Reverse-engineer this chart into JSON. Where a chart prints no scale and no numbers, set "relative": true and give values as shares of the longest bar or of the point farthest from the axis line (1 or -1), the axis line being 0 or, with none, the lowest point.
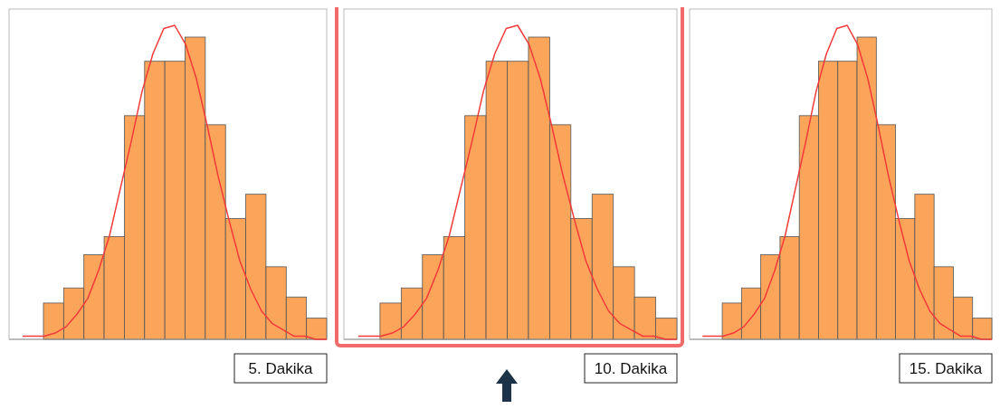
{
  "chart_data": [
    {
      "type": "bar",
      "title": "5. Dakika",
      "relative": true,
      "color": "#fba55a",
      "categories": [
        null,
        null,
        null,
        null,
        null,
        null,
        null,
        null,
        null,
        null,
        null,
        null,
        null,
        null
      ],
      "values": [
        0.12,
        0.17,
        0.28,
        0.34,
        0.74,
        0.92,
        0.92,
        1,
        0.71,
        0.4,
        0.48,
        0.24,
        0.14,
        0.07
      ]
    },
    {
      "type": "line",
      "relative": true,
      "color": "#f23a3a",
      "categories": [
        null,
        null,
        null,
        null,
        null,
        null,
        null,
        null,
        null,
        null,
        null,
        null,
        null,
        null,
        null,
        null,
        null,
        null,
        null,
        null,
        null,
        null,
        null,
        null,
        null,
        null,
        null,
        null,
        null
      ],
      "values": [
        0.01,
        0.01,
        0.01,
        0.02,
        0.04,
        0.08,
        0.13,
        0.22,
        0.33,
        0.48,
        0.63,
        0.79,
        0.91,
        0.99,
        1,
        0.94,
        0.83,
        0.68,
        0.52,
        0.38,
        0.25,
        0.16,
        0.09,
        0.05,
        0.03,
        0.01,
        0.01,
        0,
        0
      ]
    },
    {
      "type": "bar",
      "title": "10. Dakika",
      "relative": true,
      "color": "#fba55a",
      "categories": [
        null,
        null,
        null,
        null,
        null,
        null,
        null,
        null,
        null,
        null,
        null,
        null,
        null,
        null
      ],
      "values": [
        0.12,
        0.17,
        0.28,
        0.34,
        0.74,
        0.92,
        0.92,
        1,
        0.71,
        0.4,
        0.48,
        0.24,
        0.14,
        0.07
      ]
    },
    {
      "type": "line",
      "relative": true,
      "color": "#f23a3a",
      "categories": [
        null,
        null,
        null,
        null,
        null,
        null,
        null,
        null,
        null,
        null,
        null,
        null,
        null,
        null,
        null,
        null,
        null,
        null,
        null,
        null,
        null,
        null,
        null,
        null,
        null,
        null,
        null,
        null,
        null
      ],
      "values": [
        0.01,
        0.01,
        0.01,
        0.02,
        0.04,
        0.08,
        0.13,
        0.22,
        0.33,
        0.48,
        0.63,
        0.79,
        0.91,
        0.99,
        1,
        0.94,
        0.83,
        0.68,
        0.52,
        0.38,
        0.25,
        0.16,
        0.09,
        0.05,
        0.03,
        0.01,
        0.01,
        0,
        0
      ]
    },
    {
      "type": "bar",
      "title": "15. Dakika",
      "relative": true,
      "color": "#fba55a",
      "categories": [
        null,
        null,
        null,
        null,
        null,
        null,
        null,
        null,
        null,
        null,
        null,
        null,
        null,
        null
      ],
      "values": [
        0.12,
        0.17,
        0.28,
        0.34,
        0.74,
        0.92,
        0.92,
        1,
        0.71,
        0.4,
        0.48,
        0.24,
        0.14,
        0.07
      ]
    },
    {
      "type": "line",
      "relative": true,
      "color": "#f23a3a",
      "categories": [
        null,
        null,
        null,
        null,
        null,
        null,
        null,
        null,
        null,
        null,
        null,
        null,
        null,
        null,
        null,
        null,
        null,
        null,
        null,
        null,
        null,
        null,
        null,
        null,
        null,
        null,
        null,
        null,
        null
      ],
      "values": [
        0.01,
        0.01,
        0.01,
        0.02,
        0.04,
        0.08,
        0.13,
        0.22,
        0.33,
        0.48,
        0.63,
        0.79,
        0.91,
        0.99,
        1,
        0.94,
        0.83,
        0.68,
        0.52,
        0.38,
        0.25,
        0.16,
        0.09,
        0.05,
        0.03,
        0.01,
        0.01,
        0,
        0
      ]
    }
  ]
}
